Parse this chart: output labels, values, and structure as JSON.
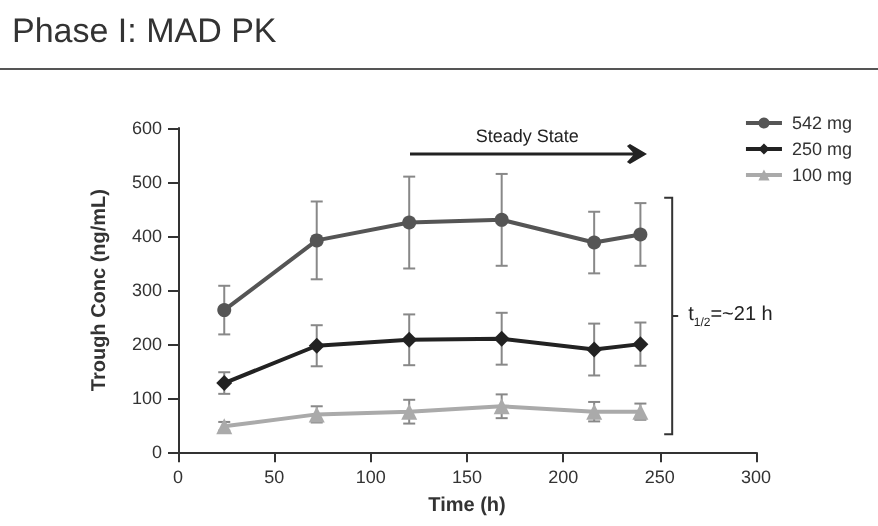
{
  "chart_data": {
    "type": "line",
    "title": "Phase I: MAD PK",
    "xlabel": "Time (h)",
    "ylabel": "Trough Conc (ng/mL)",
    "annotations": [
      "Steady State",
      "t$_{1/2}$=~21 h"
    ],
    "x": [
      24,
      72,
      120,
      168,
      216,
      240
    ],
    "series": [
      {
        "name": "542 mg",
        "color": "#555555",
        "marker": "circle",
        "values": [
          263,
          392,
          425,
          430,
          388,
          403
        ],
        "errors": [
          45,
          72,
          85,
          85,
          57,
          58
        ]
      },
      {
        "name": "250 mg",
        "color": "#222222",
        "marker": "diamond",
        "values": [
          128,
          197,
          208,
          210,
          190,
          200
        ],
        "errors": [
          20,
          38,
          47,
          48,
          48,
          40
        ]
      },
      {
        "name": "100 mg",
        "color": "#aaaaaa",
        "marker": "triangle",
        "values": [
          48,
          70,
          75,
          85,
          75,
          75
        ],
        "errors": [
          8,
          15,
          22,
          22,
          18,
          15
        ]
      }
    ],
    "xlim": [
      0,
      300
    ],
    "xticks": [
      0,
      50,
      100,
      150,
      200,
      250,
      300
    ],
    "ylim": [
      0,
      600
    ],
    "yticks": [
      0,
      100,
      200,
      300,
      400,
      500,
      600
    ],
    "grid": false,
    "legend": "top right"
  }
}
